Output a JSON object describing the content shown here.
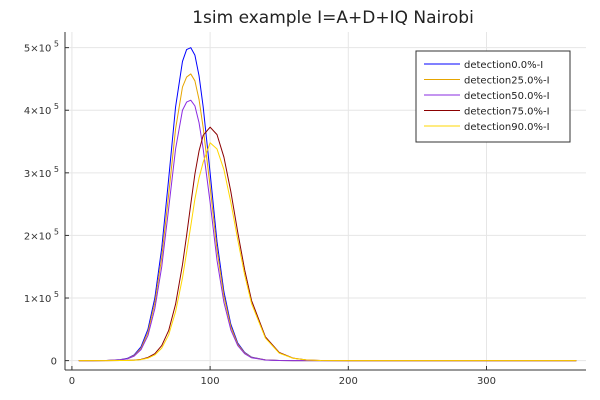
{
  "chart_data": {
    "type": "line",
    "title": "1sim example I=A+D+IQ Nairobi",
    "xlabel": "",
    "ylabel": "",
    "xlim": [
      -5,
      372
    ],
    "ylim": [
      -15000,
      525000
    ],
    "grid": true,
    "legend_position": "top-right",
    "x_ticks": [
      {
        "value": 0,
        "label": "0"
      },
      {
        "value": 100,
        "label": "100"
      },
      {
        "value": 200,
        "label": "200"
      },
      {
        "value": 300,
        "label": "300"
      }
    ],
    "y_ticks": [
      {
        "value": 0,
        "mant": "0",
        "exp": ""
      },
      {
        "value": 100000,
        "mant": "1×10",
        "exp": "5"
      },
      {
        "value": 200000,
        "mant": "2×10",
        "exp": "5"
      },
      {
        "value": 300000,
        "mant": "3×10",
        "exp": "5"
      },
      {
        "value": 400000,
        "mant": "4×10",
        "exp": "5"
      },
      {
        "value": 500000,
        "mant": "5×10",
        "exp": "5"
      }
    ],
    "x": [
      5,
      15,
      25,
      35,
      40,
      45,
      50,
      55,
      60,
      65,
      70,
      75,
      80,
      83,
      86,
      89,
      92,
      95,
      100,
      105,
      110,
      115,
      120,
      125,
      130,
      140,
      150,
      160,
      170,
      180,
      200,
      250,
      300,
      365
    ],
    "series": [
      {
        "name": "detection0.0%-I",
        "color": "#0000ff",
        "values": [
          0,
          0,
          150,
          1500,
          3500,
          9000,
          22000,
          50000,
          100000,
          180000,
          290000,
          405000,
          478000,
          497000,
          500000,
          488000,
          455000,
          405000,
          300000,
          190000,
          110000,
          58000,
          28000,
          13000,
          5500,
          1200,
          200,
          0,
          0,
          0,
          0,
          0,
          0,
          0
        ]
      },
      {
        "name": "detection25.0%-I",
        "color": "#e6a500",
        "values": [
          0,
          0,
          130,
          1300,
          3000,
          8000,
          19500,
          45000,
          92000,
          165000,
          265000,
          370000,
          437000,
          453000,
          458000,
          447000,
          417000,
          372000,
          278000,
          177000,
          103000,
          54000,
          26000,
          12000,
          5000,
          1100,
          180,
          0,
          0,
          0,
          0,
          0,
          0,
          0
        ]
      },
      {
        "name": "detection50.0%-I",
        "color": "#8a2be2",
        "values": [
          0,
          0,
          120,
          1200,
          2800,
          7200,
          17500,
          40000,
          83000,
          150000,
          243000,
          338000,
          400000,
          413000,
          416000,
          407000,
          380000,
          338000,
          253000,
          160000,
          93000,
          49000,
          24000,
          11000,
          4500,
          1000,
          160,
          0,
          0,
          0,
          0,
          0,
          0,
          0
        ]
      },
      {
        "name": "detection75.0%-I",
        "color": "#8b0000",
        "values": [
          0,
          0,
          0,
          100,
          300,
          800,
          2000,
          5000,
          11000,
          24000,
          48000,
          90000,
          153000,
          200000,
          250000,
          298000,
          335000,
          360000,
          373000,
          361000,
          325000,
          270000,
          205000,
          145000,
          96000,
          38000,
          13000,
          4000,
          1000,
          200,
          0,
          0,
          0,
          0
        ]
      },
      {
        "name": "detection90.0%-I",
        "color": "#ffd700",
        "values": [
          0,
          0,
          0,
          80,
          250,
          650,
          1600,
          4000,
          9000,
          20000,
          41000,
          78000,
          132000,
          173000,
          215000,
          258000,
          292000,
          317000,
          348000,
          338000,
          305000,
          253000,
          193000,
          137000,
          91000,
          36000,
          12000,
          3800,
          900,
          180,
          0,
          0,
          0,
          0
        ]
      }
    ]
  }
}
